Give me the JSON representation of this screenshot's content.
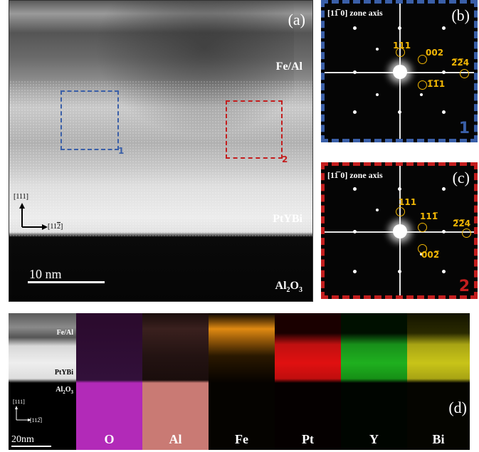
{
  "panel_a": {
    "letter": "(a)",
    "layer_top": "Fe/Al",
    "layer_mid": "PtYBi",
    "layer_bottom": "Al",
    "layer_bottom_sub1": "2",
    "layer_bottom_mid": "O",
    "layer_bottom_sub2": "3",
    "box1_label": "1",
    "box2_label": "2",
    "axis_up": "[111]",
    "axis_right": "[11",
    "axis_right_bar": "2",
    "axis_right_end": "]",
    "scale": "10 nm",
    "colors": {
      "box1": "#3a5fa8",
      "box2": "#c41e1e"
    }
  },
  "panel_b": {
    "letter": "(b)",
    "zone_axis": "[11̅ 0] zone axis",
    "spot_111": "111",
    "spot_002": "002",
    "spot_224": "2̅2̅4",
    "spot_11bar1": "1̅1̅1",
    "region": "1",
    "frame_color": "#3a5fa8"
  },
  "panel_c": {
    "letter": "(c)",
    "zone_axis": "[11̅ 0] zone axis",
    "spot_111": "111",
    "spot_11bar1": "111̅",
    "spot_224": "2̅2̅4",
    "spot_002bar": "002̅",
    "region": "2",
    "frame_color": "#c41e1e"
  },
  "panel_d": {
    "letter": "(d)",
    "layer_top": "Fe/Al",
    "layer_mid": "PtYBi",
    "layer_bottom": "Al",
    "layer_bottom_sub1": "2",
    "layer_bottom_mid": "O",
    "layer_bottom_sub2": "3",
    "axis_up": "[111]",
    "axis_right": "[112̅]",
    "scale": "20nm",
    "elements": [
      {
        "label": "O",
        "color": "#b22ab8"
      },
      {
        "label": "Al",
        "color": "#c97a74"
      },
      {
        "label": "Fe",
        "color": "#e08a12"
      },
      {
        "label": "Pt",
        "color": "#e01010"
      },
      {
        "label": "Y",
        "color": "#1fb01f"
      },
      {
        "label": "Bi",
        "color": "#c8c418"
      }
    ]
  }
}
